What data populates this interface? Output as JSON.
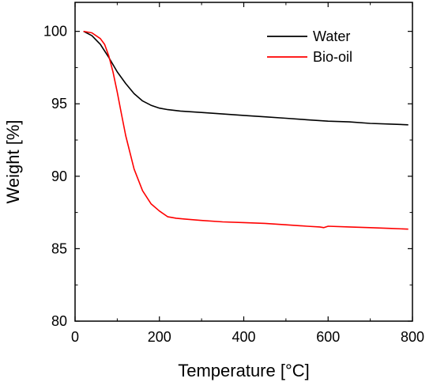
{
  "chart_data": {
    "type": "line",
    "xlabel": "Temperature [°C]",
    "ylabel": "Weight [%]",
    "xlim": [
      0,
      800
    ],
    "ylim": [
      80,
      102
    ],
    "x_ticks": [
      0,
      200,
      400,
      600,
      800
    ],
    "y_ticks": [
      80,
      85,
      90,
      95,
      100
    ],
    "grid": false,
    "legend_position": "top-right",
    "series": [
      {
        "name": "Water",
        "color": "#000000",
        "points": [
          [
            20,
            100.0
          ],
          [
            40,
            99.7
          ],
          [
            60,
            99.1
          ],
          [
            80,
            98.2
          ],
          [
            100,
            97.2
          ],
          [
            120,
            96.4
          ],
          [
            140,
            95.7
          ],
          [
            160,
            95.2
          ],
          [
            180,
            94.9
          ],
          [
            200,
            94.7
          ],
          [
            220,
            94.6
          ],
          [
            250,
            94.5
          ],
          [
            300,
            94.4
          ],
          [
            350,
            94.3
          ],
          [
            400,
            94.2
          ],
          [
            450,
            94.1
          ],
          [
            500,
            94.0
          ],
          [
            550,
            93.9
          ],
          [
            600,
            93.8
          ],
          [
            650,
            93.75
          ],
          [
            700,
            93.65
          ],
          [
            750,
            93.6
          ],
          [
            790,
            93.55
          ]
        ]
      },
      {
        "name": "Bio-oil",
        "color": "#ff0000",
        "points": [
          [
            20,
            100.0
          ],
          [
            40,
            99.9
          ],
          [
            60,
            99.5
          ],
          [
            70,
            99.1
          ],
          [
            80,
            98.3
          ],
          [
            90,
            97.2
          ],
          [
            100,
            95.8
          ],
          [
            110,
            94.3
          ],
          [
            120,
            92.8
          ],
          [
            140,
            90.5
          ],
          [
            160,
            89.0
          ],
          [
            180,
            88.1
          ],
          [
            200,
            87.6
          ],
          [
            220,
            87.2
          ],
          [
            240,
            87.1
          ],
          [
            260,
            87.05
          ],
          [
            300,
            86.95
          ],
          [
            350,
            86.85
          ],
          [
            400,
            86.8
          ],
          [
            450,
            86.75
          ],
          [
            500,
            86.65
          ],
          [
            550,
            86.55
          ],
          [
            580,
            86.5
          ],
          [
            590,
            86.45
          ],
          [
            600,
            86.55
          ],
          [
            650,
            86.5
          ],
          [
            700,
            86.45
          ],
          [
            750,
            86.4
          ],
          [
            790,
            86.35
          ]
        ]
      }
    ]
  }
}
